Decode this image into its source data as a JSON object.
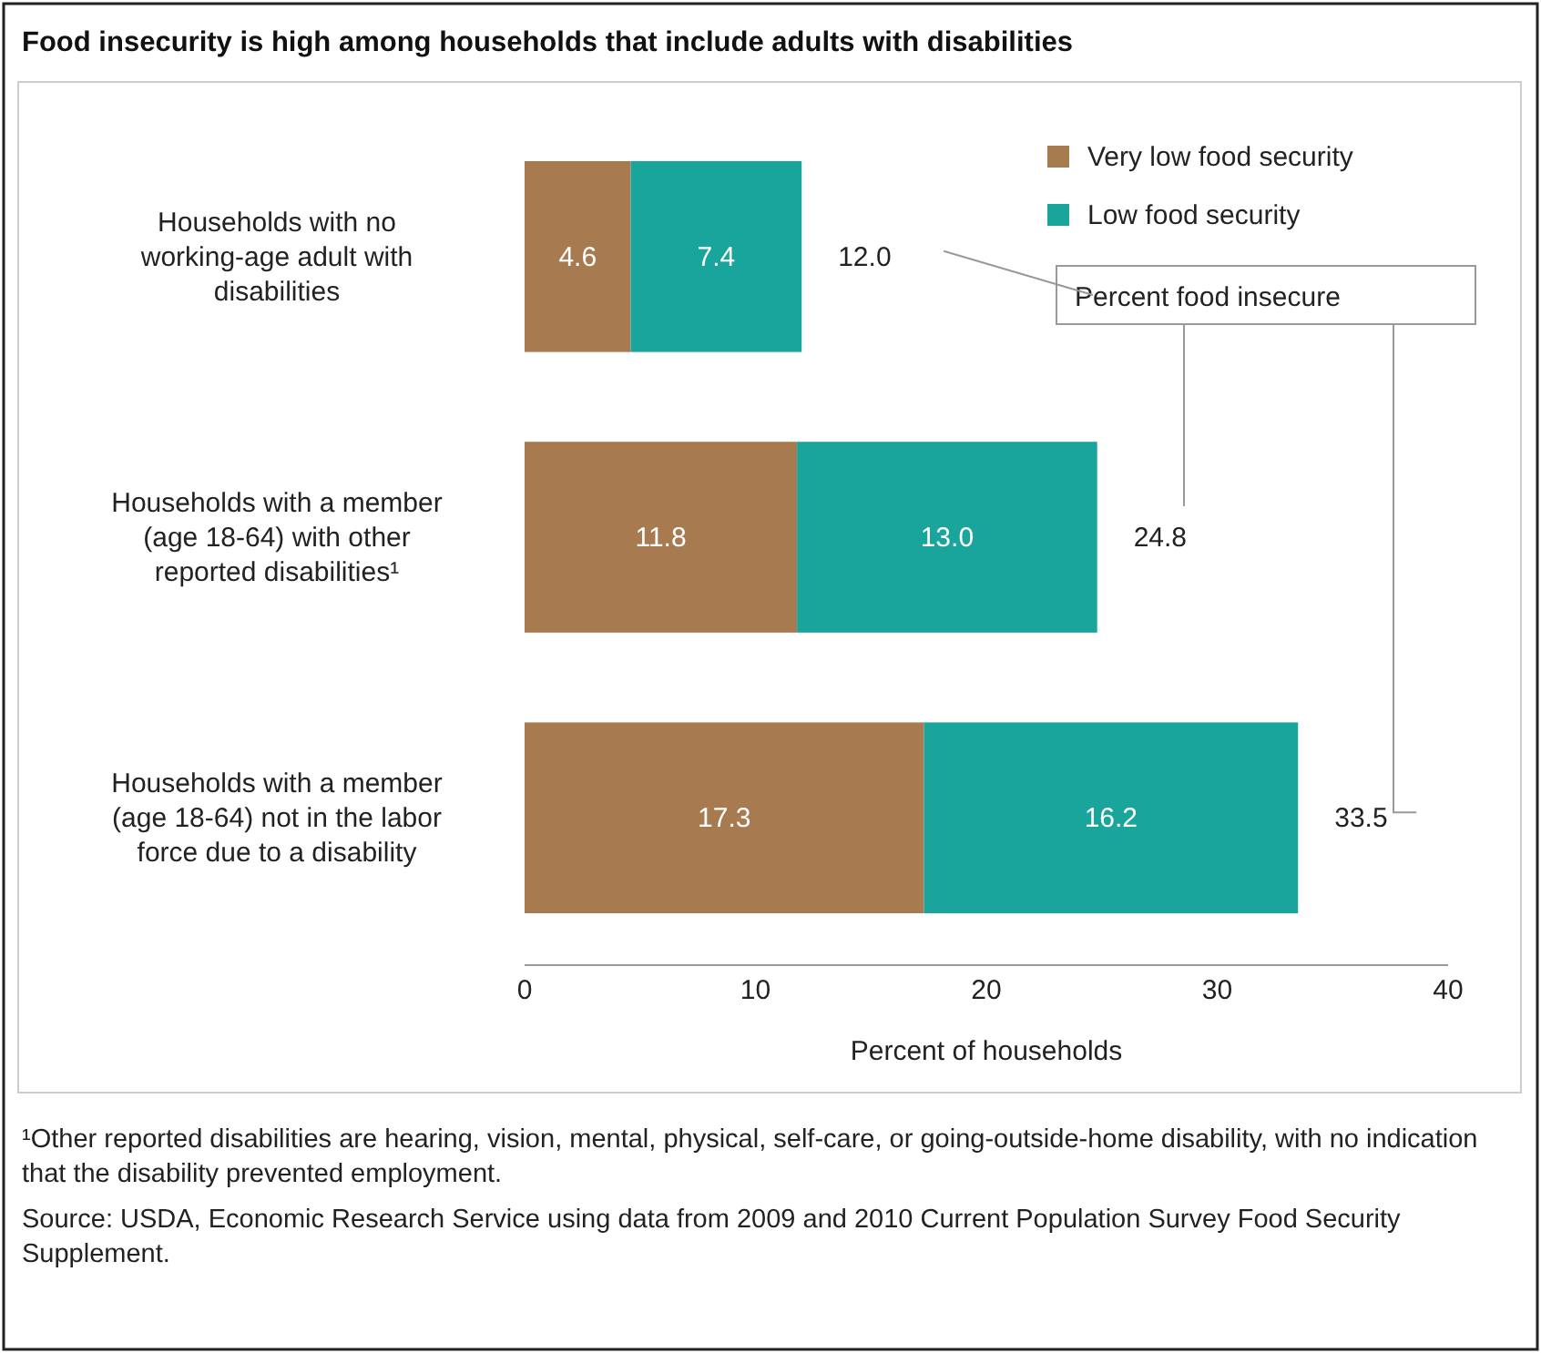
{
  "chart_data": {
    "type": "bar",
    "orientation": "horizontal",
    "stacked": true,
    "title": "Food insecurity is high among households that include adults with disabilities",
    "categories": [
      "Households with no working-age adult with disabilities",
      "Households with a member (age 18-64) with other reported disabilities¹",
      "Households with a member (age 18-64) not in the labor force due to a disability"
    ],
    "series": [
      {
        "name": "Very low food security",
        "color": "#a87a50",
        "values": [
          4.6,
          11.8,
          17.3
        ],
        "value_labels": [
          "4.6",
          "11.8",
          "17.3"
        ]
      },
      {
        "name": "Low food security",
        "color": "#1aa59c",
        "values": [
          7.4,
          13.0,
          16.2
        ],
        "value_labels": [
          "7.4",
          "13.0",
          "16.2"
        ]
      }
    ],
    "xlim": [
      0,
      40
    ],
    "xticks": [
      0,
      10,
      20,
      30,
      40
    ],
    "xlabel": "Percent of households",
    "totals": [
      "12.0",
      "24.8",
      "33.5"
    ],
    "legend": "top right",
    "grid": false,
    "annotations": [
      "Percent food insecure",
      "¹Other reported disabilities are hearing, vision, mental, physical, self-care, or going-outside-home disability, with no indication that the disability prevented employment.",
      "Source: USDA, Economic Research Service using data from 2009 and 2010 Current Population Survey Food Security Supplement."
    ]
  }
}
